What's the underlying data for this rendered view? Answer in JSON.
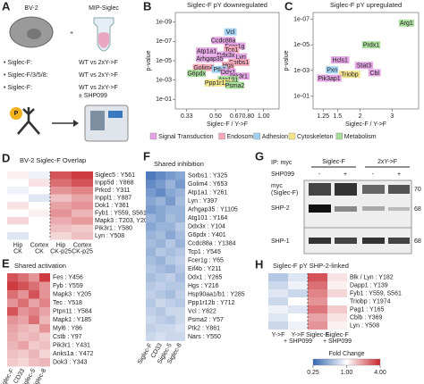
{
  "panel_a": {
    "letter": "A",
    "cell": "BV-2",
    "plus": "+",
    "construct": "MIP-Siglec",
    "bullets": [
      {
        "label": "• Siglec-F:",
        "text": "WT vs 2xY->F"
      },
      {
        "label": "• Siglec-F/3/5/8:",
        "text": "WT vs 2xY->F"
      },
      {
        "label": "• Siglec-F:",
        "text": "WT vs 2xY->F",
        "extra": "± SHP099"
      }
    ],
    "phospho": "P"
  },
  "panel_b": {
    "letter": "B",
    "title": "Siglec-F pY downregulated",
    "xlabel": "Siglec-F / Y->F",
    "ylabel": "p-value",
    "xlog": true,
    "ylog": true,
    "xlim": [
      0.28,
      1.25
    ],
    "ylim": [
      1,
      1e-10
    ],
    "xticks": [
      0.33,
      {
        "value": 0.5,
        "label": "0.50"
      },
      0.67,
      {
        "value": 0.8,
        "label": "0.80"
      },
      {
        "value": 1,
        "label": "1.00"
      }
    ],
    "yticks": [
      {
        "value": 1e-09,
        "label": "1e-09"
      },
      {
        "value": 1e-07,
        "label": "1e-07"
      },
      {
        "value": 1e-05,
        "label": "1e-05"
      },
      {
        "value": 0.001,
        "label": "1e-03"
      },
      {
        "value": 0.1,
        "label": "1e-01"
      }
    ],
    "points": [
      {
        "label": "Vcl",
        "x": 0.62,
        "y": 1e-08,
        "color": "#9fd0f0"
      },
      {
        "label": "Ccdc88a",
        "x": 0.56,
        "y": 8e-08,
        "color": "#e3a1e3"
      },
      {
        "label": "Fcer1g",
        "x": 0.66,
        "y": 3e-07,
        "color": "#e3a1e3"
      },
      {
        "label": "Atp1a1",
        "x": 0.44,
        "y": 1e-06,
        "color": "#e3a1e3"
      },
      {
        "label": "Tcp1",
        "x": 0.63,
        "y": 7e-07,
        "color": "#f7a8b8"
      },
      {
        "label": "Ddx3x",
        "x": 0.58,
        "y": 2.5e-06,
        "color": "#e3a1e3"
      },
      {
        "label": "Arhgap35",
        "x": 0.46,
        "y": 6e-06,
        "color": "#e3a1e3"
      },
      {
        "label": "Lyn",
        "x": 0.72,
        "y": 4e-06,
        "color": "#e3a1e3"
      },
      {
        "label": "Sorbs1",
        "x": 0.7,
        "y": 1.5e-05,
        "color": "#f7a8b8"
      },
      {
        "label": "Hgs",
        "x": 0.6,
        "y": 3e-05,
        "color": "#f7a8b8"
      },
      {
        "label": "Golim4",
        "x": 0.42,
        "y": 5e-05,
        "color": "#f7a8b8"
      },
      {
        "label": "Ptk2",
        "x": 0.53,
        "y": 8e-05,
        "color": "#9fd0f0"
      },
      {
        "label": "G6pdx",
        "x": 0.38,
        "y": 0.0002,
        "color": "#a8dc9a"
      },
      {
        "label": "Ddx1",
        "x": 0.6,
        "y": 0.00015,
        "color": "#e3a1e3"
      },
      {
        "label": "Pik3r1",
        "x": 0.7,
        "y": 0.0004,
        "color": "#e3a1e3"
      },
      {
        "label": "Atg101",
        "x": 0.6,
        "y": 0.0009,
        "color": "#a8dc9a"
      },
      {
        "label": "Ppp1r12b",
        "x": 0.52,
        "y": 0.002,
        "color": "#f5e58a"
      },
      {
        "label": "Psma2",
        "x": 0.66,
        "y": 0.0035,
        "color": "#a8dc9a"
      }
    ]
  },
  "panel_c": {
    "letter": "C",
    "title": "Siglec-F pY upregulated",
    "xlabel": "Siglec-F / Y->F",
    "ylabel": "p-value",
    "xlog": true,
    "ylog": true,
    "xlim": [
      1.1,
      4.2
    ],
    "ylim": [
      1,
      3e-08
    ],
    "xticks": [
      1.25,
      1.5,
      2,
      3
    ],
    "yticks": [
      {
        "value": 1e-07,
        "label": "1e-07"
      },
      {
        "value": 1e-05,
        "label": "1e-05"
      },
      {
        "value": 0.001,
        "label": "1e-03"
      },
      {
        "value": 0.1,
        "label": "1e-01"
      }
    ],
    "points": [
      {
        "label": "Arg1",
        "x": 3.6,
        "y": 2e-07,
        "color": "#a8dc9a"
      },
      {
        "label": "Prdx1",
        "x": 2.3,
        "y": 1e-05,
        "color": "#a8dc9a"
      },
      {
        "label": "Hcls1",
        "x": 1.55,
        "y": 0.00015,
        "color": "#e3a1e3"
      },
      {
        "label": "Stat3",
        "x": 2.1,
        "y": 0.0004,
        "color": "#e3a1e3"
      },
      {
        "label": "Pxn",
        "x": 1.4,
        "y": 0.0009,
        "color": "#9fd0f0"
      },
      {
        "label": "Triobp",
        "x": 1.75,
        "y": 0.002,
        "color": "#f5e58a"
      },
      {
        "label": "Cbl",
        "x": 2.4,
        "y": 0.0015,
        "color": "#e3a1e3"
      },
      {
        "label": "Pik3ap1",
        "x": 1.35,
        "y": 0.004,
        "color": "#e3a1e3"
      }
    ]
  },
  "categories": [
    {
      "name": "Signal Transduction",
      "color": "#e3a1e3"
    },
    {
      "name": "Endosome",
      "color": "#f7a8b8"
    },
    {
      "name": "Adhesion",
      "color": "#9fd0f0"
    },
    {
      "name": "Cytoskeleton",
      "color": "#f5e58a"
    },
    {
      "name": "Metabolism",
      "color": "#a8dc9a"
    }
  ],
  "panel_d": {
    "letter": "D",
    "title": "BV-2 Siglec-F Overlap",
    "columns": [
      [
        "Hip",
        "CK"
      ],
      [
        "Cortex",
        "CK"
      ],
      [
        "Hip",
        "CK-p25"
      ],
      [
        "Cortex",
        "CK-p25"
      ]
    ],
    "rows": [
      "Siglec5 : Y561",
      "Inpp5d : Y868",
      "Prkcd : Y311",
      "Inppl1 : Y887",
      "Dok1 : Y361",
      "Fyb1 : Y559, S561",
      "Mapk3 : T203, Y205",
      "Pik3r1 : Y580",
      "Lyn : Y508"
    ],
    "values": [
      [
        1.1,
        0.9,
        3.0,
        3.5
      ],
      [
        1.0,
        1.2,
        2.5,
        3.0
      ],
      [
        0.9,
        1.0,
        2.0,
        2.2
      ],
      [
        1.0,
        0.8,
        1.5,
        1.8
      ],
      [
        1.2,
        1.0,
        1.8,
        2.0
      ],
      [
        1.0,
        1.1,
        2.0,
        1.6
      ],
      [
        1.3,
        1.0,
        1.7,
        1.9
      ],
      [
        1.0,
        1.0,
        1.5,
        1.4
      ],
      [
        0.8,
        1.0,
        1.3,
        1.5
      ]
    ]
  },
  "panel_e": {
    "letter": "E",
    "title": "Shared activation",
    "columns": [
      "Siglec-F",
      "CD33",
      "Siglec-5",
      "Siglec-8"
    ],
    "rows": [
      "Fes : Y456",
      "Fyb : Y559",
      "Mapk3 : Y205",
      "Tec : Y518",
      "Ptpn11 : Y584",
      "Mapk1 : Y185",
      "Myl6 : Y86",
      "Cstb : Y97",
      "Pik3r1 : Y431",
      "Anks1a : Y472",
      "Dok3 : Y343"
    ],
    "values": [
      [
        3.0,
        2.5,
        2.0,
        3.5
      ],
      [
        3.5,
        3.0,
        2.5,
        2.0
      ],
      [
        2.5,
        2.0,
        3.0,
        2.0
      ],
      [
        2.0,
        2.5,
        1.8,
        2.2
      ],
      [
        3.0,
        2.0,
        2.2,
        1.8
      ],
      [
        2.0,
        1.8,
        2.5,
        1.6
      ],
      [
        1.8,
        1.6,
        1.5,
        2.0
      ],
      [
        1.7,
        1.5,
        1.6,
        1.4
      ],
      [
        1.6,
        1.8,
        1.4,
        1.5
      ],
      [
        1.5,
        1.4,
        1.6,
        1.3
      ],
      [
        1.4,
        1.3,
        1.5,
        1.6
      ]
    ]
  },
  "panel_f": {
    "letter": "F",
    "title": "Shared inhibition",
    "columns": [
      "Siglec-F",
      "CD33",
      "Siglec-5",
      "Siglec-8"
    ],
    "rows": [
      "Sorbs1 : Y325",
      "Golim4 : Y653",
      "Atp1a1 : Y261",
      "Lyn : Y397",
      "Arhgap35 : Y1105",
      "Atg101 : Y164",
      "Ddx3x : Y104",
      "G6pdx : Y401",
      "Ccdc88a : Y1384",
      "Tcp1 : Y545",
      "Fcer1g : Y65",
      "Eif4b : Y211",
      "Ddx1 : Y265",
      "Hgs : Y216",
      "Hsp90aa1/b1 : Y285",
      "Ppp1r12b : Y712",
      "Vcl : Y822",
      "Psma2 : Y57",
      "Ptk2 : Y861",
      "Nars : Y550"
    ],
    "values": [
      [
        0.3,
        0.35,
        0.4,
        0.45
      ],
      [
        0.35,
        0.4,
        0.5,
        0.4
      ],
      [
        0.4,
        0.35,
        0.45,
        0.5
      ],
      [
        0.45,
        0.5,
        0.4,
        0.55
      ],
      [
        0.4,
        0.45,
        0.5,
        0.5
      ],
      [
        0.5,
        0.45,
        0.55,
        0.5
      ],
      [
        0.45,
        0.5,
        0.5,
        0.6
      ],
      [
        0.5,
        0.55,
        0.45,
        0.55
      ],
      [
        0.55,
        0.5,
        0.6,
        0.5
      ],
      [
        0.5,
        0.6,
        0.55,
        0.6
      ],
      [
        0.55,
        0.5,
        0.6,
        0.65
      ],
      [
        0.6,
        0.55,
        0.5,
        0.6
      ],
      [
        0.55,
        0.6,
        0.65,
        0.55
      ],
      [
        0.6,
        0.65,
        0.6,
        0.6
      ],
      [
        0.65,
        0.6,
        0.55,
        0.65
      ],
      [
        0.6,
        0.7,
        0.65,
        0.6
      ],
      [
        0.65,
        0.6,
        0.7,
        0.7
      ],
      [
        0.7,
        0.65,
        0.6,
        0.7
      ],
      [
        0.65,
        0.7,
        0.7,
        0.75
      ],
      [
        0.7,
        0.75,
        0.7,
        0.7
      ]
    ]
  },
  "panel_g": {
    "letter": "G",
    "ip": "IP: myc",
    "groups": [
      "Siglec-F",
      "2xY->F"
    ],
    "treatment": "SHP099",
    "signs": [
      "-",
      "+",
      "-",
      "+"
    ],
    "blots": [
      [
        "myc",
        "(Siglec-F)"
      ],
      [
        "SHP-2"
      ],
      [
        "SHP-1"
      ]
    ],
    "mw": [
      "70",
      "68",
      "68"
    ]
  },
  "panel_h": {
    "letter": "H",
    "title": "Siglec-F pY SHP-2-linked",
    "columns": [
      [
        "Y->F"
      ],
      [
        "Y->F",
        "+ SHP099"
      ],
      [
        "Siglec-F"
      ],
      [
        "Siglec-F",
        "+ SHP099"
      ]
    ],
    "rows": [
      "Blk / Lyn : Y182",
      "Dapp1 : Y139",
      "Fyb1 : Y559, S561",
      "Triobp : Y1974",
      "Pag1 : Y165",
      "Cblb : Y369",
      "Lyn : Y508"
    ],
    "values": [
      [
        0.6,
        0.8,
        3.0,
        1.2
      ],
      [
        0.7,
        0.9,
        2.5,
        1.1
      ],
      [
        0.8,
        0.7,
        2.2,
        1.3
      ],
      [
        0.7,
        1.0,
        2.0,
        1.0
      ],
      [
        0.9,
        0.8,
        2.4,
        1.4
      ],
      [
        0.8,
        1.0,
        1.8,
        1.2
      ],
      [
        0.7,
        0.9,
        2.0,
        1.1
      ]
    ]
  },
  "colorbar": {
    "title": "Fold Change",
    "log": true,
    "lim": [
      0.25,
      4
    ],
    "ticks": [
      0.25,
      {
        "value": 1,
        "label": "1.00"
      },
      {
        "value": 4,
        "label": "4.00"
      }
    ],
    "colors": [
      "#3366b3",
      "#ffffff",
      "#c8262c"
    ]
  }
}
